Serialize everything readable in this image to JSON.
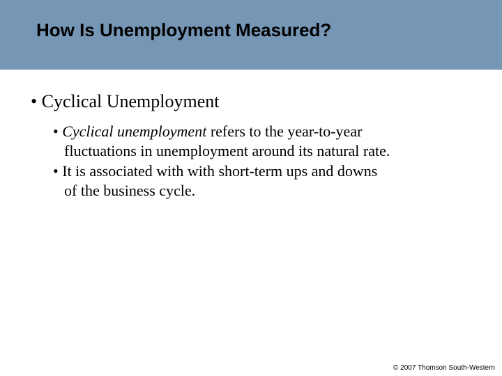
{
  "slide": {
    "title": "How Is Unemployment Measured?",
    "background_color": "#7596b5",
    "content_background": "#ffffff",
    "title_font": "Arial",
    "title_fontsize": 26,
    "title_weight": "bold",
    "body_font": "Times New Roman",
    "bullet1_fontsize": 26,
    "bullet2_fontsize": 22
  },
  "content": {
    "main_bullet": "•  Cyclical Unemployment",
    "sub_bullet_1_prefix": "•  ",
    "sub_bullet_1_italic": "Cyclical unemployment",
    "sub_bullet_1_rest": " refers to the year-to-year",
    "sub_bullet_1_line2": "fluctuations in unemployment around its natural rate.",
    "sub_bullet_2_line1": "•  It is associated with with short-term ups and downs",
    "sub_bullet_2_line2": "of the business cycle."
  },
  "footer": {
    "copyright": "© 2007 Thomson South-Western"
  }
}
